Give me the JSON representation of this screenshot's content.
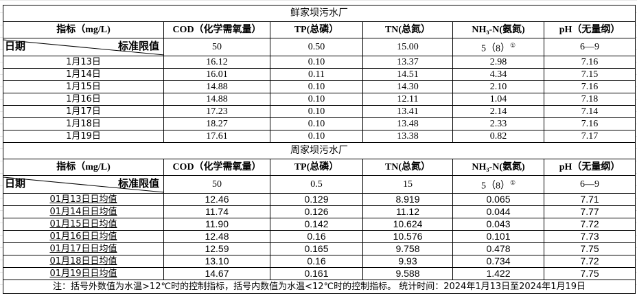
{
  "headers": {
    "indicator": "指标（mg/L)",
    "cod": "COD（化学需氧量）",
    "tp": "TP(总磷）",
    "tn": "TN(总氮）",
    "nh3": "NH₃-N(氨氮)",
    "ph": "pH（无量纲）"
  },
  "diag": {
    "left": "日期",
    "right": "标准限值"
  },
  "tables": [
    {
      "title": "鲜家坝污水厂",
      "standards": [
        "50",
        "0.50",
        "15.00",
        "5（8）",
        "6—9"
      ],
      "footnote_mark": "①",
      "rows": [
        [
          "1月13日",
          "16.12",
          "0.10",
          "13.37",
          "2.98",
          "7.16"
        ],
        [
          "1月14日",
          "16.01",
          "0.11",
          "14.51",
          "4.34",
          "7.15"
        ],
        [
          "1月15日",
          "14.88",
          "0.10",
          "14.30",
          "2.10",
          "7.16"
        ],
        [
          "1月16日",
          "14.88",
          "0.10",
          "12.11",
          "1.04",
          "7.18"
        ],
        [
          "1月17日",
          "17.23",
          "0.10",
          "13.41",
          "2.14",
          "7.14"
        ],
        [
          "1月18日",
          "18.27",
          "0.10",
          "13.48",
          "2.33",
          "7.16"
        ],
        [
          "1月19日",
          "17.61",
          "0.10",
          "13.38",
          "0.82",
          "7.17"
        ]
      ]
    },
    {
      "title": "周家坝污水厂",
      "standards": [
        "50",
        "0.5",
        "15",
        "5（8）",
        "6—9"
      ],
      "footnote_mark": "①",
      "rows": [
        [
          "01月13日日均值",
          "12.46",
          "0.129",
          "8.919",
          "0.065",
          "7.71"
        ],
        [
          "01月14日日均值",
          "11.74",
          "0.126",
          "11.12",
          "0.044",
          "7.77"
        ],
        [
          "01月15日日均值",
          "11.90",
          "0.142",
          "10.624",
          "0.043",
          "7.72"
        ],
        [
          "01月16日日均值",
          "12.48",
          "0.16",
          "10.576",
          "0.101",
          "7.73"
        ],
        [
          "01月17日日均值",
          "12.59",
          "0.165",
          "9.758",
          "0.478",
          "7.75"
        ],
        [
          "01月18日日均值",
          "13.10",
          "0.16",
          "9.93",
          "0.734",
          "7.72"
        ],
        [
          "01月19日日均值",
          "14.67",
          "0.161",
          "9.588",
          "1.422",
          "7.75"
        ]
      ]
    }
  ],
  "note": "注：括号外数值为水温>12℃时的控制指标，括号内数值为水温<12℃时的控制指标。   统计时间：2024年1月13日至2024年1月19日"
}
